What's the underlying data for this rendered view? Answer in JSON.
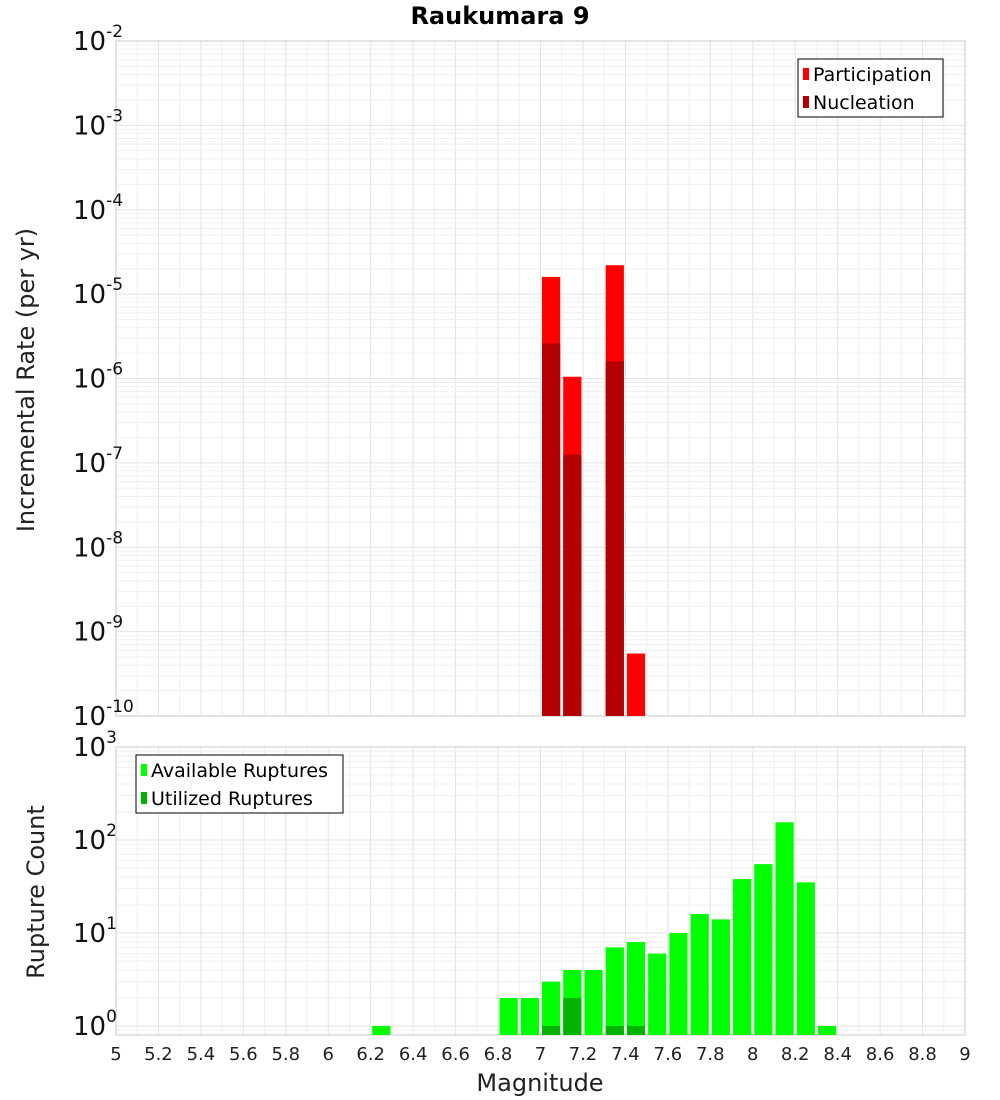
{
  "chart_data": [
    {
      "type": "bar",
      "title": "Raukumara 9",
      "xlabel": "",
      "ylabel": "Incremental Rate (per yr)",
      "y_scale": "log",
      "ylim": [
        1e-10,
        0.01
      ],
      "xlim": [
        5,
        9
      ],
      "legend_position": "top-right",
      "grid": true,
      "y_ticks": [
        {
          "base": "10",
          "exp": "-2"
        },
        {
          "base": "10",
          "exp": "-3"
        },
        {
          "base": "10",
          "exp": "-4"
        },
        {
          "base": "10",
          "exp": "-5"
        },
        {
          "base": "10",
          "exp": "-6"
        },
        {
          "base": "10",
          "exp": "-7"
        },
        {
          "base": "10",
          "exp": "-8"
        },
        {
          "base": "10",
          "exp": "-9"
        },
        {
          "base": "10",
          "exp": "-10"
        }
      ],
      "series": [
        {
          "name": "Participation",
          "color": "#ff0000",
          "points": [
            {
              "x": 7.05,
              "y": 1.6e-05
            },
            {
              "x": 7.15,
              "y": 1.05e-06
            },
            {
              "x": 7.35,
              "y": 2.2e-05
            },
            {
              "x": 7.45,
              "y": 5.5e-10
            }
          ]
        },
        {
          "name": "Nucleation",
          "color": "#b40000",
          "points": [
            {
              "x": 7.05,
              "y": 2.6e-06
            },
            {
              "x": 7.15,
              "y": 1.25e-07
            },
            {
              "x": 7.35,
              "y": 1.6e-06
            }
          ]
        }
      ]
    },
    {
      "type": "bar",
      "xlabel": "Magnitude",
      "ylabel": "Rupture Count",
      "y_scale": "log",
      "ylim": [
        0.8,
        1000
      ],
      "xlim": [
        5,
        9
      ],
      "legend_position": "top-left",
      "grid": true,
      "x_ticks": [
        "5",
        "5.2",
        "5.4",
        "5.6",
        "5.8",
        "6",
        "6.2",
        "6.4",
        "6.6",
        "6.8",
        "7",
        "7.2",
        "7.4",
        "7.6",
        "7.8",
        "8",
        "8.2",
        "8.4",
        "8.6",
        "8.8",
        "9"
      ],
      "y_ticks": [
        {
          "base": "10",
          "exp": "3"
        },
        {
          "base": "10",
          "exp": "2"
        },
        {
          "base": "10",
          "exp": "1"
        },
        {
          "base": "10",
          "exp": "0"
        }
      ],
      "series": [
        {
          "name": "Available Ruptures",
          "color": "#00ff00",
          "points": [
            {
              "x": 6.25,
              "y": 1
            },
            {
              "x": 6.85,
              "y": 2
            },
            {
              "x": 6.95,
              "y": 2
            },
            {
              "x": 7.05,
              "y": 3
            },
            {
              "x": 7.15,
              "y": 4
            },
            {
              "x": 7.25,
              "y": 4
            },
            {
              "x": 7.35,
              "y": 7
            },
            {
              "x": 7.45,
              "y": 8
            },
            {
              "x": 7.55,
              "y": 6
            },
            {
              "x": 7.65,
              "y": 10
            },
            {
              "x": 7.75,
              "y": 16
            },
            {
              "x": 7.85,
              "y": 14
            },
            {
              "x": 7.95,
              "y": 38
            },
            {
              "x": 8.05,
              "y": 55
            },
            {
              "x": 8.15,
              "y": 155
            },
            {
              "x": 8.25,
              "y": 35
            },
            {
              "x": 8.35,
              "y": 1
            }
          ]
        },
        {
          "name": "Utilized Ruptures",
          "color": "#00b400",
          "points": [
            {
              "x": 7.05,
              "y": 1
            },
            {
              "x": 7.15,
              "y": 2
            },
            {
              "x": 7.35,
              "y": 1
            },
            {
              "x": 7.45,
              "y": 1
            }
          ]
        }
      ]
    }
  ]
}
